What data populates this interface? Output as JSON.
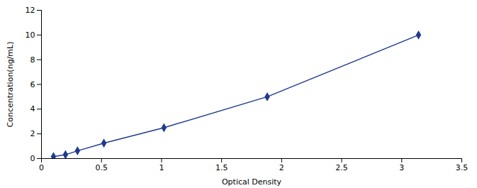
{
  "chart_data": {
    "type": "line",
    "x": [
      0.1,
      0.2,
      0.3,
      0.52,
      1.02,
      1.88,
      3.14
    ],
    "values": [
      0.156,
      0.312,
      0.625,
      1.25,
      2.5,
      5.0,
      10.0
    ],
    "color": "#1f3a8f",
    "marker": "diamond",
    "xlabel": "Optical Density",
    "ylabel": "Concentration(ng/mL)",
    "xlim": [
      0,
      3.5
    ],
    "ylim": [
      0,
      12
    ],
    "xticks": [
      0,
      0.5,
      1,
      1.5,
      2,
      2.5,
      3,
      3.5
    ],
    "yticks": [
      0,
      2,
      4,
      6,
      8,
      10,
      12
    ],
    "grid": false
  }
}
